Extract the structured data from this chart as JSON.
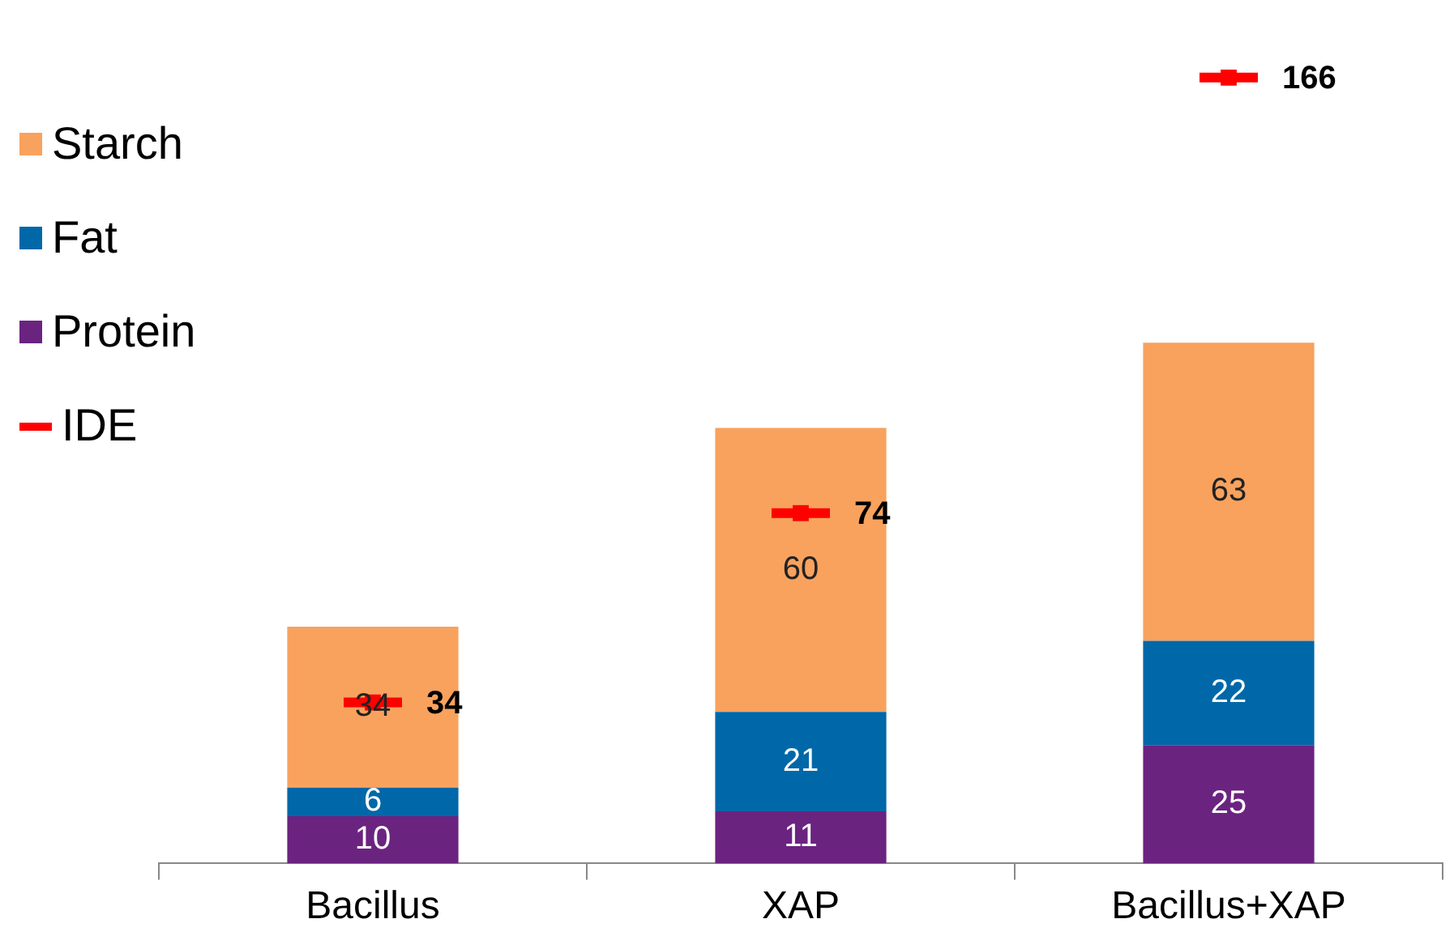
{
  "chart_data": {
    "type": "bar",
    "stacked": true,
    "categories": [
      "Bacillus",
      "XAP",
      "Bacillus+XAP"
    ],
    "series": [
      {
        "name": "Protein",
        "color": "#6b2380",
        "values": [
          10,
          11,
          25
        ]
      },
      {
        "name": "Fat",
        "color": "#0068a8",
        "values": [
          6,
          21,
          22
        ]
      },
      {
        "name": "Starch",
        "color": "#f8a25e",
        "values": [
          34,
          60,
          63
        ]
      },
      {
        "name": "IDE",
        "type": "scatter",
        "color": "#ff0000",
        "values": [
          34,
          74,
          166
        ]
      }
    ],
    "tick_labels": "x",
    "data_labels": true,
    "grid": false,
    "legend": "left"
  }
}
